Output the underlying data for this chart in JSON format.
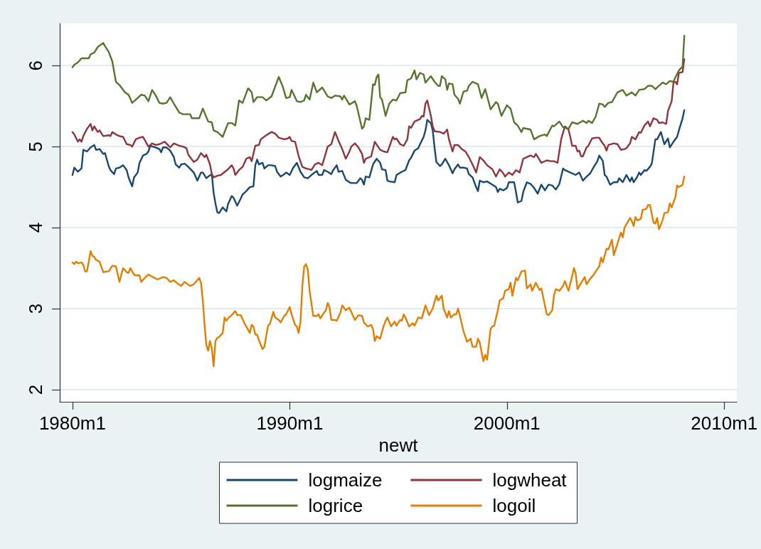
{
  "chart_data": {
    "type": "line",
    "xlabel": "newt",
    "series": [
      {
        "name": "logmaize",
        "color": "#1a476f",
        "x": [
          "1980-01",
          "1980-02",
          "1980-04",
          "1980-06",
          "1980-07",
          "1980-09",
          "1980-11",
          "1981-01",
          "1981-02",
          "1981-04",
          "1981-06",
          "1981-07",
          "1981-09",
          "1981-10",
          "1981-12",
          "1982-01",
          "1982-03",
          "1982-05",
          "1982-07",
          "1982-08",
          "1982-10",
          "1982-11",
          "1983-01",
          "1983-02",
          "1983-04",
          "1983-06",
          "1983-07",
          "1983-08",
          "1983-11",
          "1984-01",
          "1984-02",
          "1984-03",
          "1984-05",
          "1984-07",
          "1984-09",
          "1984-10",
          "1984-12",
          "1985-01",
          "1985-03",
          "1985-05",
          "1985-08",
          "1985-09",
          "1985-10",
          "1985-12",
          "1986-01",
          "1986-03",
          "1986-04",
          "1986-06",
          "1986-07",
          "1986-08",
          "1986-09",
          "1986-10",
          "1986-12",
          "1987-02",
          "1987-03",
          "1987-05",
          "1987-06",
          "1987-08",
          "1987-10",
          "1987-11",
          "1988-01",
          "1988-03",
          "1988-05",
          "1988-06",
          "1988-07",
          "1988-08",
          "1988-10",
          "1988-11",
          "1989-01",
          "1989-03",
          "1989-05",
          "1989-06",
          "1989-08",
          "1989-10",
          "1989-11",
          "1990-01",
          "1990-03",
          "1990-05",
          "1990-07",
          "1990-09",
          "1990-11",
          "1991-01",
          "1991-04",
          "1991-05",
          "1991-07",
          "1991-08",
          "1991-10",
          "1991-12",
          "1992-01",
          "1992-03",
          "1992-04",
          "1992-06",
          "1992-08",
          "1992-10",
          "1992-11",
          "1993-02",
          "1993-04",
          "1993-05",
          "1993-06",
          "1993-07",
          "1993-09",
          "1993-11",
          "1994-01",
          "1994-03",
          "1994-04",
          "1994-06",
          "1994-07",
          "1994-08",
          "1994-11",
          "1994-12",
          "1995-03",
          "1995-05",
          "1995-07",
          "1995-08",
          "1995-10",
          "1995-12",
          "1996-01",
          "1996-03",
          "1996-04",
          "1996-05",
          "1996-07",
          "1996-08",
          "1996-09",
          "1996-10",
          "1996-12",
          "1997-01",
          "1997-03",
          "1997-05",
          "1997-07",
          "1997-08",
          "1997-10",
          "1997-11",
          "1998-01",
          "1998-03",
          "1998-04",
          "1998-06",
          "1998-08",
          "1998-09",
          "1998-10",
          "1998-12",
          "1999-02",
          "1999-05",
          "1999-07",
          "1999-08",
          "1999-09",
          "1999-11",
          "2000-01",
          "2000-02",
          "2000-05",
          "2000-06",
          "2000-07",
          "2000-09",
          "2000-10",
          "2000-12",
          "2001-02",
          "2001-04",
          "2001-06",
          "2001-08",
          "2001-10",
          "2001-12",
          "2002-02",
          "2002-04",
          "2002-06",
          "2002-08",
          "2002-09",
          "2002-12",
          "2003-03",
          "2003-05",
          "2003-07",
          "2003-09",
          "2003-11",
          "2004-01",
          "2004-03",
          "2004-04",
          "2004-06",
          "2004-07",
          "2004-08",
          "2004-10",
          "2004-12",
          "2005-02",
          "2005-03",
          "2005-05",
          "2005-07",
          "2005-09",
          "2005-10",
          "2005-11",
          "2006-01",
          "2006-02",
          "2006-03",
          "2006-05",
          "2006-06",
          "2006-08",
          "2006-09",
          "2006-11",
          "2006-12",
          "2007-02",
          "2007-04",
          "2007-06",
          "2007-07",
          "2007-09",
          "2007-11",
          "2007-12",
          "2008-02",
          "2008-03"
        ],
        "values": [
          4.65,
          4.74,
          4.69,
          4.73,
          4.96,
          4.94,
          4.99,
          5.02,
          4.96,
          4.97,
          4.91,
          4.92,
          4.76,
          4.71,
          4.66,
          4.73,
          4.74,
          4.77,
          4.71,
          4.62,
          4.51,
          4.62,
          4.68,
          4.8,
          4.89,
          4.91,
          4.94,
          5.01,
          4.99,
          4.97,
          4.93,
          4.99,
          4.99,
          4.95,
          4.87,
          4.78,
          4.74,
          4.78,
          4.79,
          4.75,
          4.68,
          4.63,
          4.58,
          4.68,
          4.68,
          4.61,
          4.63,
          4.66,
          4.43,
          4.3,
          4.19,
          4.18,
          4.25,
          4.2,
          4.29,
          4.39,
          4.37,
          4.27,
          4.36,
          4.41,
          4.45,
          4.5,
          4.51,
          4.77,
          4.84,
          4.78,
          4.8,
          4.73,
          4.77,
          4.77,
          4.76,
          4.69,
          4.63,
          4.66,
          4.68,
          4.65,
          4.74,
          4.8,
          4.69,
          4.62,
          4.61,
          4.65,
          4.7,
          4.65,
          4.65,
          4.71,
          4.69,
          4.66,
          4.71,
          4.77,
          4.69,
          4.7,
          4.59,
          4.56,
          4.55,
          4.55,
          4.61,
          4.59,
          4.53,
          4.63,
          4.62,
          4.78,
          4.85,
          4.8,
          4.72,
          4.71,
          4.58,
          4.57,
          4.56,
          4.65,
          4.69,
          4.71,
          4.83,
          4.86,
          4.95,
          4.98,
          5.03,
          5.12,
          5.2,
          5.33,
          5.29,
          5.2,
          4.99,
          4.81,
          4.76,
          4.78,
          4.85,
          4.77,
          4.67,
          4.72,
          4.78,
          4.74,
          4.74,
          4.73,
          4.66,
          4.62,
          4.5,
          4.45,
          4.58,
          4.56,
          4.57,
          4.53,
          4.5,
          4.44,
          4.48,
          4.46,
          4.49,
          4.56,
          4.56,
          4.44,
          4.31,
          4.33,
          4.44,
          4.56,
          4.54,
          4.49,
          4.42,
          4.53,
          4.46,
          4.53,
          4.52,
          4.47,
          4.54,
          4.73,
          4.71,
          4.68,
          4.65,
          4.68,
          4.58,
          4.63,
          4.67,
          4.75,
          4.82,
          4.89,
          4.82,
          4.65,
          4.63,
          4.53,
          4.56,
          4.56,
          4.61,
          4.56,
          4.65,
          4.57,
          4.62,
          4.56,
          4.63,
          4.68,
          4.65,
          4.71,
          4.7,
          4.75,
          4.79,
          5.09,
          5.09,
          5.18,
          5.03,
          5.1,
          4.99,
          5.06,
          5.12,
          5.2,
          5.35,
          5.45
        ]
      },
      {
        "name": "logwheat",
        "color": "#90353b",
        "x": [
          "1980-01",
          "1980-02",
          "1980-04",
          "1980-05",
          "1980-06",
          "1980-07",
          "1980-09",
          "1980-11",
          "1980-12",
          "1981-01",
          "1981-03",
          "1981-04",
          "1981-06",
          "1981-09",
          "1981-10",
          "1981-11",
          "1982-01",
          "1982-03",
          "1982-05",
          "1982-07",
          "1982-09",
          "1982-10",
          "1982-12",
          "1983-02",
          "1983-04",
          "1983-07",
          "1983-09",
          "1983-11",
          "1984-01",
          "1984-04",
          "1984-07",
          "1984-09",
          "1984-12",
          "1985-02",
          "1985-04",
          "1985-05",
          "1985-06",
          "1985-08",
          "1985-10",
          "1985-12",
          "1986-02",
          "1986-03",
          "1986-05",
          "1986-06",
          "1986-07",
          "1986-09",
          "1986-11",
          "1987-03",
          "1987-05",
          "1987-06",
          "1987-07",
          "1987-09",
          "1987-11",
          "1988-01",
          "1988-03",
          "1988-04",
          "1988-06",
          "1988-08",
          "1988-09",
          "1988-12",
          "1989-03",
          "1989-05",
          "1989-07",
          "1989-10",
          "1989-12",
          "1990-01",
          "1990-02",
          "1990-04",
          "1990-06",
          "1990-08",
          "1990-10",
          "1990-12",
          "1991-01",
          "1991-03",
          "1991-05",
          "1991-07",
          "1991-10",
          "1991-12",
          "1992-02",
          "1992-04",
          "1992-06",
          "1992-08",
          "1992-10",
          "1992-11",
          "1993-01",
          "1993-03",
          "1993-05",
          "1993-06",
          "1993-07",
          "1993-10",
          "1993-12",
          "1994-03",
          "1994-05",
          "1994-07",
          "1994-10",
          "1994-11",
          "1994-12",
          "1995-02",
          "1995-04",
          "1995-06",
          "1995-07",
          "1995-08",
          "1995-10",
          "1996-01",
          "1996-02",
          "1996-03",
          "1996-04",
          "1996-05",
          "1996-07",
          "1996-08",
          "1996-09",
          "1996-12",
          "1997-02",
          "1997-04",
          "1997-05",
          "1997-07",
          "1997-08",
          "1997-10",
          "1997-12",
          "1998-02",
          "1998-04",
          "1998-06",
          "1998-08",
          "1998-10",
          "1998-12",
          "1999-02",
          "1999-05",
          "1999-07",
          "1999-09",
          "1999-11",
          "1999-12",
          "2000-02",
          "2000-04",
          "2000-06",
          "2000-08",
          "2000-10",
          "2000-12",
          "2001-02",
          "2001-04",
          "2001-05",
          "2001-08",
          "2001-11",
          "2002-01",
          "2002-03",
          "2002-05",
          "2002-07",
          "2002-09",
          "2002-11",
          "2002-12",
          "2003-01",
          "2003-03",
          "2003-04",
          "2003-05",
          "2003-06",
          "2003-07",
          "2003-09",
          "2003-10",
          "2003-12",
          "2004-02",
          "2004-04",
          "2004-05",
          "2004-07",
          "2004-08",
          "2004-09",
          "2004-12",
          "2005-02",
          "2005-04",
          "2005-06",
          "2005-07",
          "2005-09",
          "2005-10",
          "2005-12",
          "2006-02",
          "2006-03",
          "2006-05",
          "2006-07",
          "2006-08",
          "2006-10",
          "2006-12",
          "2007-01",
          "2007-03",
          "2007-05",
          "2007-06",
          "2007-08",
          "2007-09",
          "2007-10",
          "2007-11",
          "2007-12",
          "2008-02",
          "2008-03"
        ],
        "values": [
          5.18,
          5.15,
          5.06,
          5.09,
          5.06,
          5.13,
          5.22,
          5.28,
          5.2,
          5.25,
          5.18,
          5.2,
          5.13,
          5.14,
          5.13,
          5.18,
          5.15,
          5.13,
          5.12,
          5.03,
          5.02,
          5.0,
          5.09,
          5.11,
          5.12,
          5.0,
          5.04,
          5.02,
          5.03,
          5.06,
          4.99,
          5.04,
          5.01,
          5.0,
          4.98,
          4.9,
          4.87,
          4.81,
          4.84,
          4.92,
          4.87,
          4.9,
          4.78,
          4.66,
          4.62,
          4.64,
          4.65,
          4.72,
          4.77,
          4.73,
          4.65,
          4.71,
          4.75,
          4.85,
          4.87,
          4.82,
          5.01,
          5.02,
          5.09,
          5.14,
          5.18,
          5.16,
          5.11,
          5.09,
          5.1,
          5.12,
          5.07,
          5.06,
          4.88,
          4.75,
          4.73,
          4.72,
          4.71,
          4.78,
          4.8,
          4.77,
          5.0,
          5.03,
          5.18,
          5.07,
          4.97,
          4.85,
          4.94,
          5.0,
          5.04,
          4.99,
          4.91,
          4.8,
          4.85,
          4.88,
          5.06,
          4.96,
          4.94,
          4.93,
          5.12,
          5.09,
          5.1,
          5.03,
          5.01,
          5.09,
          5.25,
          5.23,
          5.31,
          5.34,
          5.38,
          5.37,
          5.53,
          5.57,
          5.38,
          5.25,
          5.19,
          5.18,
          5.16,
          5.21,
          5.09,
          4.94,
          5.02,
          5.02,
          4.97,
          4.94,
          4.87,
          4.78,
          4.68,
          4.87,
          4.83,
          4.77,
          4.72,
          4.63,
          4.72,
          4.67,
          4.63,
          4.68,
          4.65,
          4.71,
          4.68,
          4.85,
          4.87,
          4.89,
          4.87,
          4.91,
          4.8,
          4.83,
          4.82,
          4.82,
          4.8,
          5.09,
          5.25,
          5.21,
          5.12,
          5.01,
          5.01,
          4.94,
          4.95,
          4.88,
          4.88,
          4.99,
          5.01,
          5.1,
          5.11,
          5.11,
          5.07,
          5.01,
          4.95,
          5.02,
          5.04,
          5.03,
          4.96,
          4.97,
          4.98,
          5.04,
          5.12,
          5.09,
          5.18,
          5.17,
          5.26,
          5.31,
          5.25,
          5.35,
          5.33,
          5.29,
          5.3,
          5.28,
          5.44,
          5.56,
          5.79,
          5.8,
          5.77,
          5.91,
          5.92,
          6.08
        ]
      },
      {
        "name": "logrice",
        "color": "#55752f",
        "x": [
          "1980-01",
          "1980-02",
          "1980-04",
          "1980-06",
          "1980-10",
          "1980-11",
          "1981-01",
          "1981-03",
          "1981-06",
          "1981-07",
          "1981-09",
          "1981-11",
          "1982-01",
          "1982-03",
          "1982-06",
          "1982-08",
          "1982-10",
          "1982-12",
          "1983-03",
          "1983-05",
          "1983-07",
          "1983-09",
          "1983-11",
          "1984-01",
          "1984-03",
          "1984-05",
          "1984-07",
          "1984-09",
          "1984-12",
          "1985-02",
          "1985-06",
          "1985-07",
          "1985-11",
          "1986-01",
          "1986-04",
          "1986-06",
          "1986-07",
          "1986-09",
          "1986-10",
          "1986-12",
          "1987-03",
          "1987-05",
          "1987-07",
          "1987-09",
          "1987-11",
          "1988-02",
          "1988-04",
          "1988-05",
          "1988-07",
          "1988-10",
          "1988-12",
          "1989-03",
          "1989-07",
          "1989-09",
          "1989-11",
          "1990-01",
          "1990-02",
          "1990-04",
          "1990-05",
          "1990-07",
          "1990-09",
          "1990-10",
          "1990-12",
          "1991-02",
          "1991-04",
          "1991-07",
          "1991-10",
          "1991-12",
          "1992-02",
          "1992-05",
          "1992-06",
          "1992-07",
          "1992-10",
          "1993-01",
          "1993-02",
          "1993-05",
          "1993-06",
          "1993-07",
          "1993-09",
          "1993-11",
          "1993-12",
          "1994-01",
          "1994-02",
          "1994-03",
          "1994-04",
          "1994-06",
          "1994-08",
          "1994-10",
          "1994-12",
          "1995-02",
          "1995-05",
          "1995-06",
          "1995-08",
          "1995-10",
          "1995-11",
          "1996-01",
          "1996-03",
          "1996-04",
          "1996-07",
          "1996-09",
          "1996-11",
          "1996-12",
          "1997-01",
          "1997-03",
          "1997-04",
          "1997-05",
          "1997-07",
          "1997-08",
          "1997-10",
          "1997-11",
          "1998-01",
          "1998-03",
          "1998-04",
          "1998-06",
          "1998-09",
          "1998-11",
          "1999-01",
          "1999-04",
          "1999-07",
          "1999-08",
          "1999-10",
          "2000-01",
          "2000-03",
          "2000-05",
          "2000-07",
          "2000-09",
          "2000-10",
          "2001-02",
          "2001-04",
          "2001-07",
          "2001-10",
          "2001-11",
          "2002-02",
          "2002-03",
          "2002-06",
          "2002-08",
          "2002-11",
          "2003-01",
          "2003-04",
          "2003-07",
          "2003-09",
          "2003-10",
          "2003-12",
          "2004-02",
          "2004-04",
          "2004-06",
          "2004-07",
          "2004-09",
          "2004-11",
          "2005-02",
          "2005-05",
          "2005-07",
          "2005-10",
          "2005-12",
          "2006-02",
          "2006-05",
          "2006-07",
          "2006-09",
          "2006-11",
          "2007-01",
          "2007-03",
          "2007-05",
          "2007-07",
          "2007-09",
          "2007-10",
          "2007-12",
          "2008-02",
          "2008-03"
        ],
        "values": [
          5.98,
          6.01,
          6.04,
          6.09,
          6.09,
          6.14,
          6.16,
          6.23,
          6.28,
          6.24,
          6.17,
          6.05,
          5.8,
          5.76,
          5.67,
          5.64,
          5.54,
          5.58,
          5.64,
          5.63,
          5.56,
          5.7,
          5.63,
          5.54,
          5.53,
          5.54,
          5.61,
          5.53,
          5.42,
          5.4,
          5.4,
          5.35,
          5.35,
          5.47,
          5.31,
          5.3,
          5.2,
          5.18,
          5.16,
          5.12,
          5.29,
          5.29,
          5.26,
          5.57,
          5.54,
          5.72,
          5.67,
          5.55,
          5.61,
          5.61,
          5.57,
          5.62,
          5.86,
          5.75,
          5.6,
          5.61,
          5.7,
          5.61,
          5.56,
          5.55,
          5.57,
          5.64,
          5.58,
          5.79,
          5.67,
          5.73,
          5.62,
          5.6,
          5.63,
          5.62,
          5.58,
          5.63,
          5.52,
          5.56,
          5.5,
          5.22,
          5.25,
          5.35,
          5.33,
          5.77,
          5.76,
          5.86,
          5.89,
          5.61,
          5.58,
          5.38,
          5.53,
          5.58,
          5.57,
          5.66,
          5.67,
          5.82,
          5.84,
          5.94,
          5.83,
          5.91,
          5.89,
          5.79,
          5.87,
          5.8,
          5.75,
          5.75,
          5.87,
          5.83,
          5.7,
          5.78,
          5.77,
          5.64,
          5.59,
          5.53,
          5.68,
          5.69,
          5.75,
          5.8,
          5.77,
          5.6,
          5.71,
          5.46,
          5.55,
          5.53,
          5.38,
          5.51,
          5.47,
          5.3,
          5.26,
          5.18,
          5.23,
          5.21,
          5.09,
          5.13,
          5.15,
          5.13,
          5.26,
          5.25,
          5.31,
          5.24,
          5.22,
          5.3,
          5.28,
          5.32,
          5.29,
          5.32,
          5.29,
          5.37,
          5.53,
          5.52,
          5.49,
          5.54,
          5.55,
          5.67,
          5.7,
          5.63,
          5.67,
          5.63,
          5.7,
          5.71,
          5.75,
          5.75,
          5.71,
          5.75,
          5.79,
          5.77,
          5.81,
          5.8,
          5.85,
          5.94,
          5.99,
          6.37
        ]
      },
      {
        "name": "logoil",
        "color": "#e37e00",
        "x": [
          "1980-01",
          "1980-02",
          "1980-03",
          "1980-04",
          "1980-06",
          "1980-07",
          "1980-08",
          "1980-09",
          "1980-11",
          "1980-12",
          "1981-01",
          "1981-02",
          "1981-04",
          "1981-06",
          "1981-08",
          "1981-09",
          "1981-11",
          "1982-01",
          "1982-03",
          "1982-05",
          "1982-07",
          "1982-08",
          "1982-09",
          "1982-11",
          "1982-12",
          "1983-02",
          "1983-03",
          "1983-05",
          "1983-07",
          "1983-12",
          "1984-03",
          "1984-05",
          "1984-07",
          "1984-09",
          "1984-11",
          "1985-01",
          "1985-03",
          "1985-06",
          "1985-08",
          "1985-11",
          "1985-12",
          "1986-01",
          "1986-02",
          "1986-03",
          "1986-04",
          "1986-05",
          "1986-06",
          "1986-07",
          "1986-08",
          "1986-09",
          "1986-10",
          "1986-12",
          "1987-01",
          "1987-02",
          "1987-03",
          "1987-05",
          "1987-07",
          "1987-08",
          "1987-10",
          "1987-12",
          "1988-01",
          "1988-03",
          "1988-04",
          "1988-05",
          "1988-06",
          "1988-07",
          "1988-08",
          "1988-10",
          "1988-11",
          "1989-01",
          "1989-02",
          "1989-04",
          "1989-05",
          "1989-07",
          "1989-08",
          "1989-10",
          "1989-11",
          "1990-01",
          "1990-02",
          "1990-04",
          "1990-05",
          "1990-06",
          "1990-07",
          "1990-08",
          "1990-09",
          "1990-10",
          "1990-11",
          "1990-12",
          "1991-02",
          "1991-04",
          "1991-05",
          "1991-06",
          "1991-08",
          "1991-09",
          "1991-10",
          "1991-11",
          "1991-12",
          "1992-02",
          "1992-03",
          "1992-05",
          "1992-06",
          "1992-08",
          "1992-09",
          "1992-10",
          "1992-12",
          "1993-01",
          "1993-03",
          "1993-05",
          "1993-06",
          "1993-08",
          "1993-10",
          "1993-11",
          "1993-12",
          "1994-01",
          "1994-03",
          "1994-05",
          "1994-06",
          "1994-07",
          "1994-09",
          "1994-11",
          "1994-12",
          "1995-02",
          "1995-03",
          "1995-04",
          "1995-05",
          "1995-07",
          "1995-09",
          "1995-10",
          "1995-12",
          "1996-02",
          "1996-04",
          "1996-06",
          "1996-08",
          "1996-10",
          "1996-11",
          "1997-01",
          "1997-02",
          "1997-04",
          "1997-05",
          "1997-06",
          "1997-08",
          "1997-09",
          "1997-10",
          "1997-11",
          "1998-01",
          "1998-03",
          "1998-05",
          "1998-06",
          "1998-08",
          "1998-09",
          "1998-10",
          "1998-12",
          "1999-01",
          "1999-02",
          "1999-04",
          "1999-05",
          "1999-06",
          "1999-08",
          "1999-09",
          "1999-11",
          "1999-12",
          "2000-02",
          "2000-03",
          "2000-04",
          "2000-06",
          "2000-07",
          "2000-09",
          "2000-11",
          "2000-12",
          "2001-02",
          "2001-03",
          "2001-05",
          "2001-07",
          "2001-08",
          "2001-10",
          "2001-11",
          "2001-12",
          "2002-02",
          "2002-03",
          "2002-04",
          "2002-06",
          "2002-08",
          "2002-09",
          "2002-11",
          "2003-01",
          "2003-02",
          "2003-03",
          "2003-04",
          "2003-06",
          "2003-08",
          "2003-09",
          "2003-11",
          "2004-01",
          "2004-02",
          "2004-04",
          "2004-05",
          "2004-06",
          "2004-08",
          "2004-09",
          "2004-11",
          "2004-12",
          "2005-02",
          "2005-04",
          "2005-05",
          "2005-06",
          "2005-09",
          "2005-10",
          "2005-11",
          "2005-12",
          "2006-01",
          "2006-03",
          "2006-04",
          "2006-06",
          "2006-07",
          "2006-08",
          "2006-10",
          "2006-11",
          "2006-12",
          "2007-01",
          "2007-03",
          "2007-04",
          "2007-06",
          "2007-07",
          "2007-08",
          "2007-10",
          "2007-11",
          "2007-12",
          "2008-02",
          "2008-03"
        ],
        "values": [
          3.57,
          3.55,
          3.58,
          3.56,
          3.57,
          3.54,
          3.46,
          3.46,
          3.71,
          3.65,
          3.64,
          3.6,
          3.58,
          3.45,
          3.46,
          3.46,
          3.53,
          3.52,
          3.33,
          3.5,
          3.45,
          3.44,
          3.5,
          3.42,
          3.41,
          3.41,
          3.33,
          3.38,
          3.42,
          3.36,
          3.39,
          3.38,
          3.33,
          3.35,
          3.31,
          3.28,
          3.33,
          3.28,
          3.3,
          3.38,
          3.32,
          3.1,
          2.78,
          2.55,
          2.48,
          2.6,
          2.51,
          2.29,
          2.6,
          2.64,
          2.65,
          2.7,
          2.89,
          2.85,
          2.88,
          2.92,
          2.97,
          2.92,
          2.92,
          2.82,
          2.78,
          2.7,
          2.8,
          2.78,
          2.68,
          2.68,
          2.61,
          2.5,
          2.53,
          2.79,
          2.81,
          2.96,
          2.89,
          2.86,
          2.83,
          2.91,
          2.93,
          3.02,
          2.93,
          2.8,
          2.78,
          2.7,
          2.84,
          3.28,
          3.52,
          3.55,
          3.48,
          3.22,
          2.91,
          2.91,
          2.93,
          2.88,
          2.95,
          2.98,
          3.07,
          3.02,
          2.86,
          2.86,
          2.85,
          2.95,
          3.04,
          2.98,
          3.0,
          3.01,
          2.91,
          2.86,
          2.92,
          2.91,
          2.83,
          2.78,
          2.8,
          2.75,
          2.6,
          2.66,
          2.63,
          2.79,
          2.85,
          2.89,
          2.78,
          2.84,
          2.79,
          2.86,
          2.85,
          2.93,
          2.89,
          2.78,
          2.82,
          2.79,
          2.89,
          2.88,
          3.04,
          2.92,
          3.0,
          3.16,
          3.1,
          3.16,
          3.0,
          2.89,
          2.97,
          2.89,
          2.93,
          2.93,
          3.0,
          2.91,
          2.72,
          2.59,
          2.63,
          2.53,
          2.53,
          2.63,
          2.58,
          2.35,
          2.43,
          2.37,
          2.75,
          2.78,
          2.79,
          2.98,
          3.1,
          3.13,
          3.22,
          3.24,
          3.32,
          3.16,
          3.38,
          3.35,
          3.46,
          3.47,
          3.25,
          3.3,
          3.22,
          3.32,
          3.23,
          3.25,
          3.04,
          2.93,
          2.92,
          2.98,
          3.16,
          3.24,
          3.22,
          3.28,
          3.34,
          3.22,
          3.4,
          3.5,
          3.44,
          3.24,
          3.32,
          3.39,
          3.3,
          3.37,
          3.42,
          3.46,
          3.52,
          3.63,
          3.57,
          3.74,
          3.73,
          3.85,
          3.66,
          3.8,
          3.94,
          3.88,
          4.0,
          4.12,
          4.08,
          4.02,
          4.13,
          4.09,
          4.11,
          4.22,
          4.23,
          4.28,
          4.28,
          4.06,
          4.05,
          4.12,
          3.98,
          4.09,
          4.18,
          4.19,
          4.3,
          4.25,
          4.37,
          4.52,
          4.5,
          4.53,
          4.63
        ]
      }
    ],
    "xlim": [
      "1979-06",
      "2010-08"
    ],
    "xticks": [
      {
        "value": "1980-01",
        "label": "1980m1"
      },
      {
        "value": "1990-01",
        "label": "1990m1"
      },
      {
        "value": "2000-01",
        "label": "2000m1"
      },
      {
        "value": "2010-01",
        "label": "2010m1"
      }
    ],
    "ylim": [
      1.85,
      6.52
    ],
    "yticks": [
      2,
      3,
      4,
      5,
      6
    ],
    "grid": "y",
    "legend": "bottom",
    "marker": "none",
    "line_style": "solid"
  }
}
